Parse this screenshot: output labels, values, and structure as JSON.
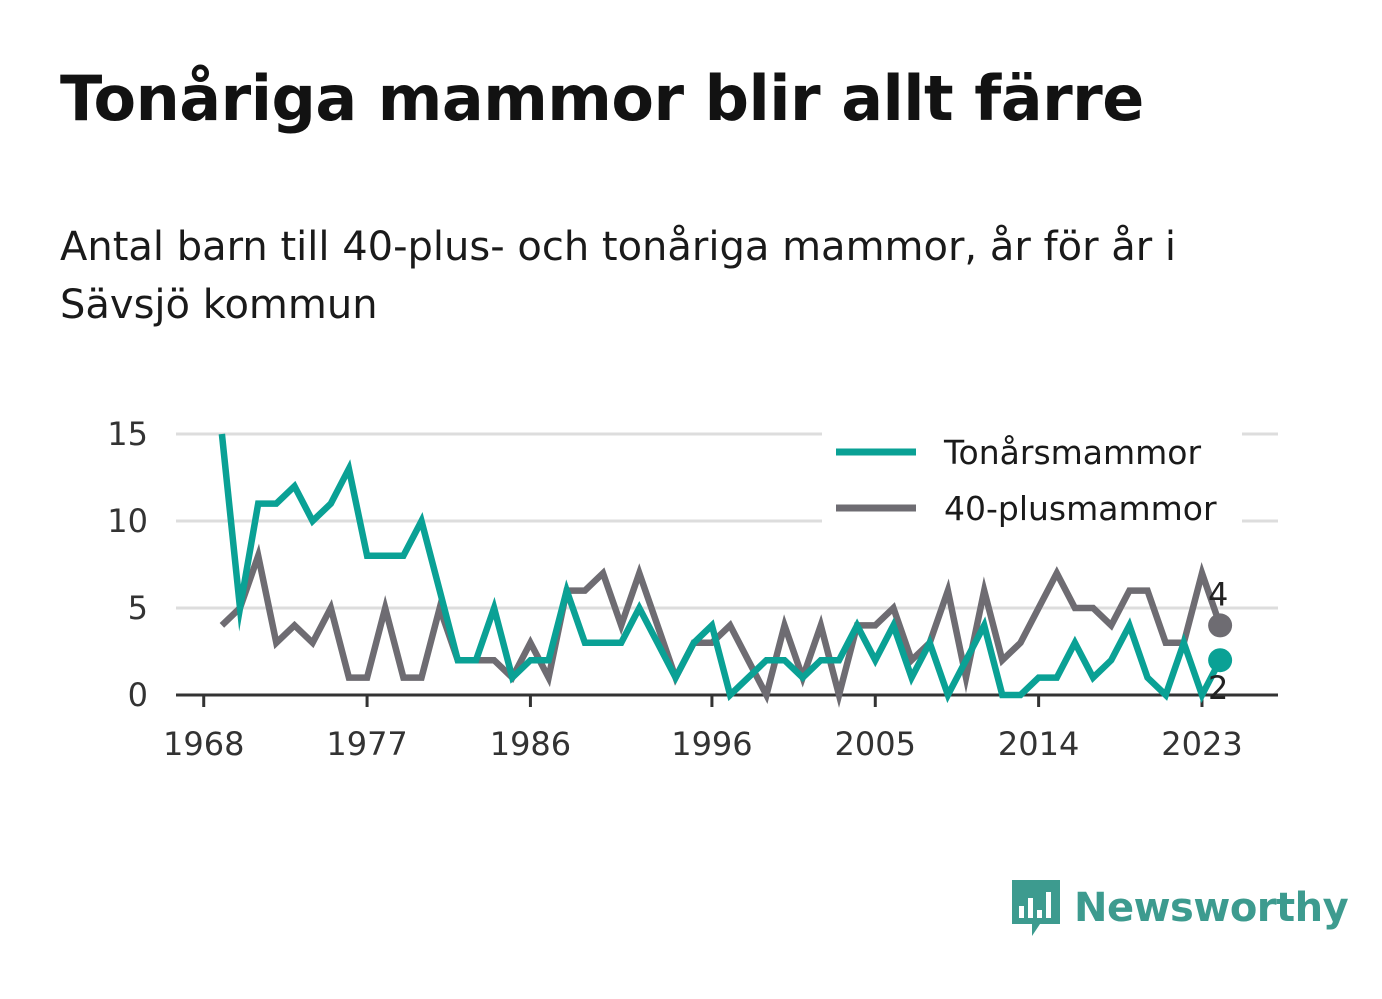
{
  "title": "Tonåriga mammor blir allt färre",
  "subtitle": "Antal barn till 40-plus- och tonåriga mammor, år för år i Sävsjö kommun",
  "brand": {
    "name": "Newsworthy",
    "color": "#3d9b8f",
    "icon": "newsworthy-logo-icon"
  },
  "colors": {
    "teen": "#0aa195",
    "forty": "#6e6c72",
    "grid": "#dddddd",
    "axis": "#333333"
  },
  "chart_data": {
    "type": "line",
    "x": [
      1969,
      1970,
      1971,
      1972,
      1973,
      1974,
      1975,
      1976,
      1977,
      1978,
      1979,
      1980,
      1981,
      1982,
      1983,
      1984,
      1985,
      1986,
      1987,
      1988,
      1989,
      1990,
      1991,
      1992,
      1993,
      1994,
      1995,
      1996,
      1997,
      1998,
      1999,
      2000,
      2001,
      2002,
      2003,
      2004,
      2005,
      2006,
      2007,
      2008,
      2009,
      2010,
      2011,
      2012,
      2013,
      2014,
      2015,
      2016,
      2017,
      2018,
      2019,
      2020,
      2021,
      2022,
      2023,
      2024
    ],
    "series": [
      {
        "name": "Tonårsmammor",
        "color": "#0aa195",
        "values": [
          15,
          5,
          11,
          11,
          12,
          10,
          11,
          13,
          8,
          8,
          8,
          10,
          6,
          2,
          2,
          5,
          1,
          2,
          2,
          6,
          3,
          3,
          3,
          5,
          3,
          1,
          3,
          4,
          0,
          1,
          2,
          2,
          1,
          2,
          2,
          4,
          2,
          4,
          1,
          3,
          0,
          2,
          4,
          0,
          0,
          1,
          1,
          3,
          1,
          2,
          4,
          1,
          0,
          3,
          0,
          2
        ]
      },
      {
        "name": "40-plusmammor",
        "color": "#6e6c72",
        "values": [
          4,
          5,
          8,
          3,
          4,
          3,
          5,
          1,
          1,
          5,
          1,
          1,
          5,
          2,
          2,
          2,
          1,
          3,
          1,
          6,
          6,
          7,
          4,
          7,
          4,
          1,
          3,
          3,
          4,
          2,
          0,
          4,
          1,
          4,
          0,
          4,
          4,
          5,
          2,
          3,
          6,
          1,
          6,
          2,
          3,
          5,
          7,
          5,
          5,
          4,
          6,
          6,
          3,
          3,
          7,
          4
        ]
      }
    ],
    "xticks": [
      "1968",
      "1977",
      "1986",
      "1996",
      "2005",
      "2014",
      "2023"
    ],
    "yticks": [
      "0",
      "5",
      "10",
      "15"
    ],
    "ylim": [
      0,
      15
    ],
    "grid": true,
    "legend": "top-right",
    "end_labels": {
      "teen": "2",
      "forty": "4"
    }
  }
}
